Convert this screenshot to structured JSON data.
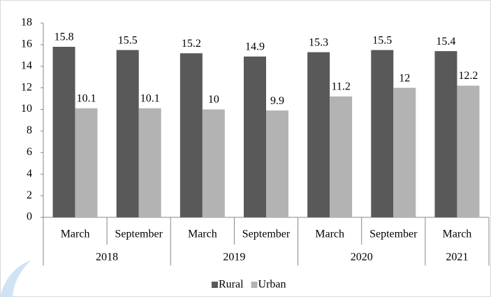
{
  "chart_data": {
    "type": "bar",
    "groups": [
      {
        "name": "2018",
        "categories": [
          "March",
          "September"
        ]
      },
      {
        "name": "2019",
        "categories": [
          "March",
          "September"
        ]
      },
      {
        "name": "2020",
        "categories": [
          "March",
          "September"
        ]
      },
      {
        "name": "2021",
        "categories": [
          "March"
        ]
      }
    ],
    "series": [
      {
        "name": "Rural",
        "color": "#595959",
        "values": [
          15.8,
          15.5,
          15.2,
          14.9,
          15.3,
          15.5,
          15.4
        ]
      },
      {
        "name": "Urban",
        "color": "#b3b3b3",
        "values": [
          10.1,
          10.1,
          10,
          9.9,
          11.2,
          12,
          12.2
        ]
      }
    ],
    "ylim": [
      0,
      18
    ],
    "yticks": [
      0,
      2,
      4,
      6,
      8,
      10,
      12,
      14,
      16,
      18
    ],
    "grid": false,
    "legend": "bottom"
  }
}
